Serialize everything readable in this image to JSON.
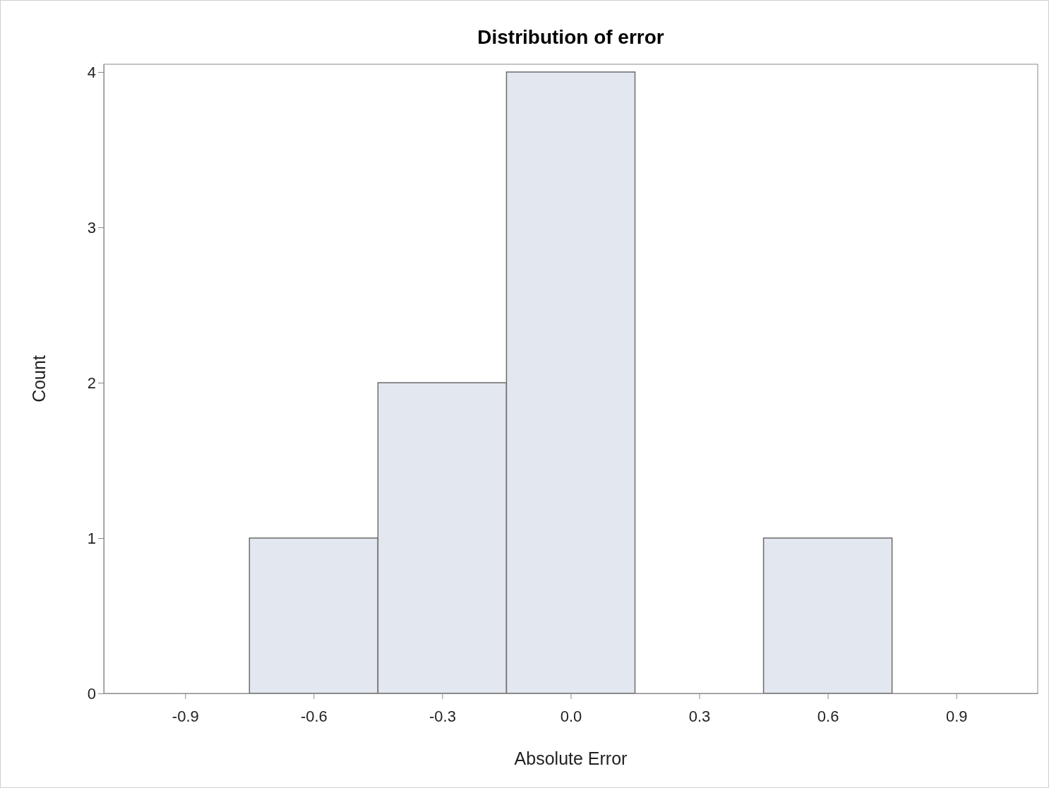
{
  "chart_data": {
    "type": "histogram",
    "title": "Distribution of error",
    "xlabel": "Absolute Error",
    "ylabel": "Count",
    "bins": [
      -0.75,
      -0.45,
      -0.15,
      0.15,
      0.45,
      0.75
    ],
    "values": [
      1,
      2,
      4,
      0,
      1
    ],
    "color": "#e3e7f0",
    "xlim": [
      -1.09,
      1.09
    ],
    "xticks": [
      {
        "value": -0.9,
        "label": "-0.9"
      },
      {
        "value": -0.6,
        "label": "-0.6"
      },
      {
        "value": -0.3,
        "label": "-0.3"
      },
      {
        "value": 0,
        "label": "0.0"
      },
      {
        "value": 0.3,
        "label": "0.3"
      },
      {
        "value": 0.6,
        "label": "0.6"
      },
      {
        "value": 0.9,
        "label": "0.9"
      }
    ],
    "ylim": [
      0,
      4.05
    ],
    "yticks": [
      0,
      1,
      2,
      3,
      4
    ]
  }
}
